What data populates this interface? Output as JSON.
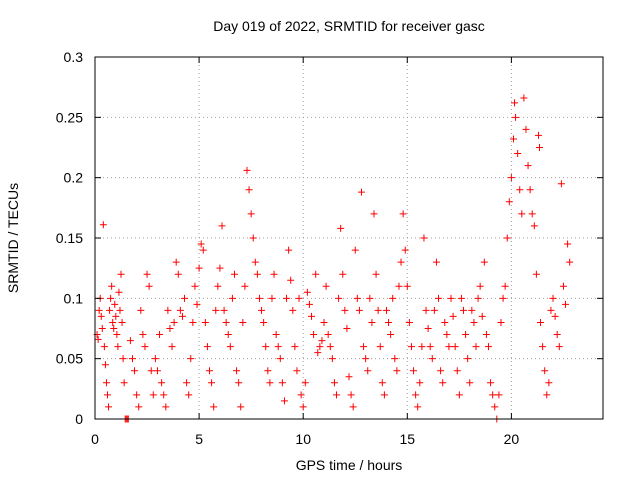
{
  "chart_data": {
    "type": "scatter",
    "title": "Day 019 of 2022, SRMTID for receiver gasc",
    "xlabel": "GPS time / hours",
    "ylabel": "SRMTID / TECUs",
    "xlim": [
      0,
      24.4
    ],
    "ylim": [
      0,
      0.3
    ],
    "x_ticks": [
      0,
      5,
      10,
      15,
      20
    ],
    "x_tick_labels": [
      "0",
      "5",
      "10",
      "15",
      "20"
    ],
    "y_ticks": [
      0,
      0.05,
      0.1,
      0.15,
      0.2,
      0.25,
      0.3
    ],
    "y_tick_labels": [
      "0",
      "0.05",
      "0.1",
      "0.15",
      "0.2",
      "0.25",
      "0.3"
    ],
    "grid": true,
    "marker": "plus",
    "point_color": "#ff0000",
    "series": [
      {
        "name": "SRMTID",
        "points": [
          [
            0.1,
            0.07
          ],
          [
            0.15,
            0.066
          ],
          [
            0.2,
            0.09
          ],
          [
            0.25,
            0.1
          ],
          [
            0.3,
            0.085
          ],
          [
            0.35,
            0.075
          ],
          [
            0.4,
            0.161
          ],
          [
            0.45,
            0.06
          ],
          [
            0.5,
            0.045
          ],
          [
            0.55,
            0.03
          ],
          [
            0.6,
            0.02
          ],
          [
            0.65,
            0.01
          ],
          [
            0.7,
            0.09
          ],
          [
            0.75,
            0.1
          ],
          [
            0.8,
            0.11
          ],
          [
            0.85,
            0.08
          ],
          [
            0.9,
            0.075
          ],
          [
            0.95,
            0.095
          ],
          [
            1.0,
            0.085
          ],
          [
            1.05,
            0.07
          ],
          [
            1.1,
            0.06
          ],
          [
            1.15,
            0.105
          ],
          [
            1.2,
            0.09
          ],
          [
            1.25,
            0.12
          ],
          [
            1.3,
            0.08
          ],
          [
            1.35,
            0.05
          ],
          [
            1.4,
            0.03
          ],
          [
            1.45,
            0.0
          ],
          [
            1.5,
            0.0
          ],
          [
            1.55,
            0.0
          ],
          [
            1.6,
            0.0
          ],
          [
            1.7,
            0.065
          ],
          [
            1.8,
            0.05
          ],
          [
            1.9,
            0.04
          ],
          [
            2.0,
            0.02
          ],
          [
            2.1,
            0.01
          ],
          [
            2.2,
            0.09
          ],
          [
            2.3,
            0.07
          ],
          [
            2.4,
            0.06
          ],
          [
            2.5,
            0.12
          ],
          [
            2.6,
            0.11
          ],
          [
            2.7,
            0.04
          ],
          [
            2.8,
            0.02
          ],
          [
            2.9,
            0.05
          ],
          [
            3.0,
            0.04
          ],
          [
            3.1,
            0.07
          ],
          [
            3.2,
            0.03
          ],
          [
            3.3,
            0.02
          ],
          [
            3.4,
            0.01
          ],
          [
            3.5,
            0.09
          ],
          [
            3.6,
            0.075
          ],
          [
            3.7,
            0.06
          ],
          [
            3.8,
            0.08
          ],
          [
            3.9,
            0.13
          ],
          [
            4.0,
            0.12
          ],
          [
            4.1,
            0.09
          ],
          [
            4.2,
            0.085
          ],
          [
            4.3,
            0.1
          ],
          [
            4.4,
            0.03
          ],
          [
            4.5,
            0.02
          ],
          [
            4.6,
            0.05
          ],
          [
            4.7,
            0.08
          ],
          [
            4.8,
            0.11
          ],
          [
            4.9,
            0.095
          ],
          [
            5.0,
            0.125
          ],
          [
            5.1,
            0.145
          ],
          [
            5.2,
            0.14
          ],
          [
            5.3,
            0.08
          ],
          [
            5.4,
            0.06
          ],
          [
            5.5,
            0.04
          ],
          [
            5.6,
            0.03
          ],
          [
            5.7,
            0.01
          ],
          [
            5.8,
            0.09
          ],
          [
            5.9,
            0.11
          ],
          [
            6.0,
            0.125
          ],
          [
            6.1,
            0.16
          ],
          [
            6.2,
            0.09
          ],
          [
            6.3,
            0.08
          ],
          [
            6.4,
            0.07
          ],
          [
            6.5,
            0.06
          ],
          [
            6.6,
            0.1
          ],
          [
            6.7,
            0.12
          ],
          [
            6.8,
            0.04
          ],
          [
            6.9,
            0.03
          ],
          [
            7.0,
            0.01
          ],
          [
            7.1,
            0.08
          ],
          [
            7.2,
            0.11
          ],
          [
            7.3,
            0.206
          ],
          [
            7.4,
            0.19
          ],
          [
            7.5,
            0.17
          ],
          [
            7.6,
            0.15
          ],
          [
            7.7,
            0.13
          ],
          [
            7.8,
            0.12
          ],
          [
            7.9,
            0.1
          ],
          [
            8.0,
            0.09
          ],
          [
            8.1,
            0.08
          ],
          [
            8.2,
            0.06
          ],
          [
            8.3,
            0.04
          ],
          [
            8.4,
            0.03
          ],
          [
            8.5,
            0.1
          ],
          [
            8.6,
            0.12
          ],
          [
            8.7,
            0.07
          ],
          [
            8.8,
            0.06
          ],
          [
            8.9,
            0.05
          ],
          [
            9.0,
            0.03
          ],
          [
            9.1,
            0.015
          ],
          [
            9.2,
            0.1
          ],
          [
            9.3,
            0.14
          ],
          [
            9.4,
            0.115
          ],
          [
            9.5,
            0.09
          ],
          [
            9.6,
            0.06
          ],
          [
            9.7,
            0.04
          ],
          [
            9.8,
            0.1
          ],
          [
            9.9,
            0.02
          ],
          [
            10.0,
            0.01
          ],
          [
            10.1,
            0.03
          ],
          [
            10.2,
            0.105
          ],
          [
            10.3,
            0.095
          ],
          [
            10.4,
            0.085
          ],
          [
            10.5,
            0.07
          ],
          [
            10.6,
            0.12
          ],
          [
            10.7,
            0.055
          ],
          [
            10.8,
            0.06
          ],
          [
            10.9,
            0.065
          ],
          [
            11.0,
            0.08
          ],
          [
            11.1,
            0.11
          ],
          [
            11.2,
            0.07
          ],
          [
            11.3,
            0.06
          ],
          [
            11.4,
            0.05
          ],
          [
            11.5,
            0.03
          ],
          [
            11.6,
            0.02
          ],
          [
            11.7,
            0.1
          ],
          [
            11.8,
            0.158
          ],
          [
            11.9,
            0.12
          ],
          [
            12.0,
            0.09
          ],
          [
            12.1,
            0.075
          ],
          [
            12.2,
            0.035
          ],
          [
            12.3,
            0.02
          ],
          [
            12.4,
            0.01
          ],
          [
            12.5,
            0.14
          ],
          [
            12.6,
            0.1
          ],
          [
            12.7,
            0.09
          ],
          [
            12.8,
            0.188
          ],
          [
            12.9,
            0.06
          ],
          [
            13.0,
            0.05
          ],
          [
            13.1,
            0.04
          ],
          [
            13.2,
            0.1
          ],
          [
            13.3,
            0.08
          ],
          [
            13.4,
            0.17
          ],
          [
            13.5,
            0.12
          ],
          [
            13.6,
            0.09
          ],
          [
            13.7,
            0.06
          ],
          [
            13.8,
            0.03
          ],
          [
            13.9,
            0.02
          ],
          [
            14.0,
            0.09
          ],
          [
            14.1,
            0.08
          ],
          [
            14.2,
            0.07
          ],
          [
            14.3,
            0.1
          ],
          [
            14.4,
            0.05
          ],
          [
            14.5,
            0.04
          ],
          [
            14.6,
            0.11
          ],
          [
            14.7,
            0.13
          ],
          [
            14.8,
            0.17
          ],
          [
            14.9,
            0.14
          ],
          [
            15.0,
            0.11
          ],
          [
            15.1,
            0.08
          ],
          [
            15.2,
            0.06
          ],
          [
            15.3,
            0.04
          ],
          [
            15.4,
            0.02
          ],
          [
            15.5,
            0.01
          ],
          [
            15.6,
            0.03
          ],
          [
            15.7,
            0.06
          ],
          [
            15.8,
            0.15
          ],
          [
            15.9,
            0.09
          ],
          [
            16.0,
            0.075
          ],
          [
            16.1,
            0.06
          ],
          [
            16.2,
            0.05
          ],
          [
            16.3,
            0.09
          ],
          [
            16.4,
            0.13
          ],
          [
            16.5,
            0.1
          ],
          [
            16.6,
            0.04
          ],
          [
            16.7,
            0.03
          ],
          [
            16.8,
            0.08
          ],
          [
            16.9,
            0.07
          ],
          [
            17.0,
            0.06
          ],
          [
            17.1,
            0.1
          ],
          [
            17.2,
            0.085
          ],
          [
            17.3,
            0.06
          ],
          [
            17.4,
            0.04
          ],
          [
            17.5,
            0.02
          ],
          [
            17.6,
            0.1
          ],
          [
            17.7,
            0.09
          ],
          [
            17.8,
            0.07
          ],
          [
            17.9,
            0.05
          ],
          [
            18.0,
            0.03
          ],
          [
            18.1,
            0.09
          ],
          [
            18.2,
            0.08
          ],
          [
            18.3,
            0.06
          ],
          [
            18.4,
            0.1
          ],
          [
            18.5,
            0.11
          ],
          [
            18.6,
            0.085
          ],
          [
            18.7,
            0.13
          ],
          [
            18.8,
            0.07
          ],
          [
            18.9,
            0.06
          ],
          [
            19.0,
            0.03
          ],
          [
            19.1,
            0.02
          ],
          [
            19.2,
            0.01
          ],
          [
            19.3,
            0.0
          ],
          [
            19.4,
            0.02
          ],
          [
            19.5,
            0.08
          ],
          [
            19.6,
            0.1
          ],
          [
            19.7,
            0.11
          ],
          [
            19.8,
            0.15
          ],
          [
            19.9,
            0.18
          ],
          [
            20.0,
            0.2
          ],
          [
            20.1,
            0.232
          ],
          [
            20.15,
            0.262
          ],
          [
            20.2,
            0.25
          ],
          [
            20.3,
            0.22
          ],
          [
            20.4,
            0.19
          ],
          [
            20.5,
            0.17
          ],
          [
            20.6,
            0.266
          ],
          [
            20.7,
            0.24
          ],
          [
            20.8,
            0.21
          ],
          [
            20.9,
            0.19
          ],
          [
            21.0,
            0.17
          ],
          [
            21.1,
            0.16
          ],
          [
            21.2,
            0.12
          ],
          [
            21.3,
            0.235
          ],
          [
            21.35,
            0.225
          ],
          [
            21.4,
            0.08
          ],
          [
            21.5,
            0.06
          ],
          [
            21.6,
            0.04
          ],
          [
            21.7,
            0.02
          ],
          [
            21.8,
            0.03
          ],
          [
            21.9,
            0.09
          ],
          [
            22.0,
            0.1
          ],
          [
            22.1,
            0.085
          ],
          [
            22.2,
            0.07
          ],
          [
            22.3,
            0.06
          ],
          [
            22.4,
            0.195
          ],
          [
            22.5,
            0.11
          ],
          [
            22.6,
            0.095
          ],
          [
            22.7,
            0.145
          ],
          [
            22.8,
            0.13
          ]
        ]
      }
    ]
  }
}
